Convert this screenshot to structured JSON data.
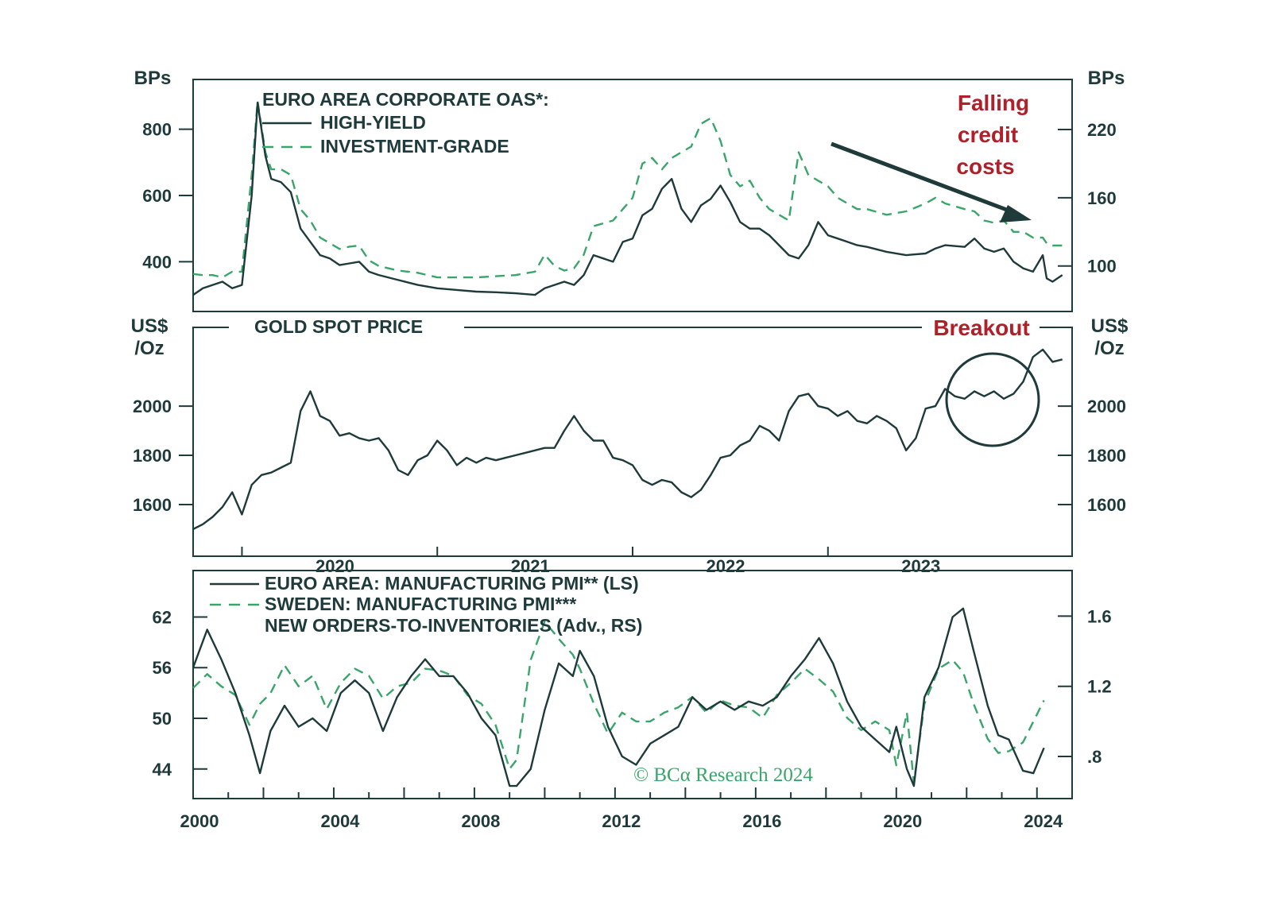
{
  "colors": {
    "dark": "#1f3a3a",
    "green": "#3aa56b",
    "red": "#b0202a"
  },
  "watermark": "© BCα Research 2024",
  "chart_data": [
    {
      "id": "oas",
      "type": "line",
      "title": "EURO AREA CORPORATE OAS*:",
      "left_unit": "BPs",
      "right_unit": "BPs",
      "x_range": [
        2019.75,
        2024.25
      ],
      "left_ylim": [
        250,
        950
      ],
      "right_ylim": [
        60,
        264
      ],
      "left_ticks": [
        {
          "value": 400,
          "label": "400"
        },
        {
          "value": 600,
          "label": "600"
        },
        {
          "value": 800,
          "label": "800"
        }
      ],
      "right_ticks": [
        {
          "value": 100,
          "label": "100"
        },
        {
          "value": 160,
          "label": "160"
        },
        {
          "value": 220,
          "label": "220"
        }
      ],
      "annotation": {
        "lines": [
          "Falling",
          "credit",
          "costs"
        ]
      },
      "series": [
        {
          "name": "HIGH-YIELD",
          "axis": "left",
          "style": "solid",
          "x": [
            2019.75,
            2019.8,
            2019.85,
            2019.9,
            2019.95,
            2020.0,
            2020.05,
            2020.08,
            2020.12,
            2020.15,
            2020.2,
            2020.25,
            2020.3,
            2020.35,
            2020.4,
            2020.45,
            2020.5,
            2020.55,
            2020.6,
            2020.65,
            2020.7,
            2020.8,
            2020.9,
            2021.0,
            2021.1,
            2021.2,
            2021.3,
            2021.4,
            2021.5,
            2021.55,
            2021.6,
            2021.65,
            2021.7,
            2021.75,
            2021.8,
            2021.9,
            2021.95,
            2022.0,
            2022.05,
            2022.1,
            2022.15,
            2022.2,
            2022.25,
            2022.3,
            2022.35,
            2022.4,
            2022.45,
            2022.5,
            2022.55,
            2022.6,
            2022.65,
            2022.7,
            2022.75,
            2022.8,
            2022.85,
            2022.9,
            2022.95,
            2023.0,
            2023.05,
            2023.1,
            2023.15,
            2023.2,
            2023.3,
            2023.4,
            2023.5,
            2023.55,
            2023.6,
            2023.7,
            2023.75,
            2023.8,
            2023.85,
            2023.9,
            2023.95,
            2024.0,
            2024.05,
            2024.1,
            2024.12,
            2024.15,
            2024.2
          ],
          "y": [
            300,
            320,
            330,
            340,
            320,
            330,
            600,
            880,
            720,
            650,
            640,
            610,
            500,
            460,
            420,
            410,
            390,
            395,
            400,
            370,
            360,
            345,
            330,
            320,
            315,
            310,
            308,
            305,
            300,
            320,
            330,
            340,
            330,
            360,
            420,
            400,
            460,
            470,
            540,
            560,
            620,
            650,
            560,
            520,
            570,
            590,
            630,
            580,
            520,
            500,
            500,
            480,
            450,
            420,
            410,
            450,
            520,
            480,
            470,
            460,
            450,
            445,
            430,
            420,
            425,
            440,
            450,
            445,
            470,
            440,
            430,
            440,
            400,
            380,
            370,
            420,
            350,
            340,
            360
          ]
        },
        {
          "name": "INVESTMENT-GRADE",
          "axis": "right",
          "style": "dashed",
          "x": [
            2019.75,
            2019.8,
            2019.85,
            2019.9,
            2019.95,
            2020.0,
            2020.05,
            2020.08,
            2020.12,
            2020.15,
            2020.2,
            2020.25,
            2020.3,
            2020.35,
            2020.4,
            2020.45,
            2020.5,
            2020.55,
            2020.6,
            2020.65,
            2020.7,
            2020.8,
            2020.9,
            2021.0,
            2021.1,
            2021.2,
            2021.3,
            2021.4,
            2021.5,
            2021.55,
            2021.6,
            2021.65,
            2021.7,
            2021.75,
            2021.8,
            2021.9,
            2021.95,
            2022.0,
            2022.05,
            2022.1,
            2022.15,
            2022.2,
            2022.25,
            2022.3,
            2022.35,
            2022.4,
            2022.45,
            2022.5,
            2022.55,
            2022.6,
            2022.65,
            2022.7,
            2022.75,
            2022.8,
            2022.85,
            2022.9,
            2022.95,
            2023.0,
            2023.05,
            2023.1,
            2023.15,
            2023.2,
            2023.3,
            2023.4,
            2023.5,
            2023.55,
            2023.6,
            2023.7,
            2023.75,
            2023.8,
            2023.85,
            2023.9,
            2023.95,
            2024.0,
            2024.05,
            2024.1,
            2024.12,
            2024.15,
            2024.2
          ],
          "y": [
            93,
            92,
            92,
            90,
            95,
            95,
            180,
            245,
            200,
            185,
            185,
            180,
            150,
            140,
            125,
            120,
            115,
            117,
            118,
            105,
            100,
            96,
            94,
            90,
            90,
            90,
            91,
            92,
            95,
            110,
            100,
            96,
            98,
            110,
            135,
            140,
            150,
            160,
            190,
            195,
            185,
            195,
            200,
            205,
            225,
            230,
            210,
            180,
            170,
            175,
            160,
            150,
            145,
            140,
            200,
            180,
            175,
            170,
            160,
            155,
            150,
            150,
            145,
            148,
            155,
            160,
            155,
            150,
            148,
            140,
            138,
            140,
            130,
            130,
            125,
            125,
            120,
            118,
            118
          ]
        }
      ]
    },
    {
      "id": "gold",
      "type": "line",
      "title": "GOLD SPOT PRICE",
      "left_unit": [
        "US$",
        "/Oz"
      ],
      "right_unit": [
        "US$",
        "/Oz"
      ],
      "x_range": [
        2019.75,
        2024.25
      ],
      "ylim": [
        1390,
        2320
      ],
      "ticks": [
        {
          "value": 1600,
          "label": "1600"
        },
        {
          "value": 1800,
          "label": "1800"
        },
        {
          "value": 2000,
          "label": "2000"
        }
      ],
      "x_ticks": [
        {
          "value": 2020,
          "label": "2020"
        },
        {
          "value": 2021,
          "label": "2021"
        },
        {
          "value": 2022,
          "label": "2022"
        },
        {
          "value": 2023,
          "label": "2023"
        }
      ],
      "annotation": {
        "text": "Breakout"
      },
      "series": [
        {
          "name": "GOLD SPOT PRICE",
          "style": "solid",
          "x": [
            2019.75,
            2019.8,
            2019.85,
            2019.9,
            2019.95,
            2020.0,
            2020.05,
            2020.1,
            2020.15,
            2020.2,
            2020.25,
            2020.3,
            2020.35,
            2020.4,
            2020.45,
            2020.5,
            2020.55,
            2020.6,
            2020.65,
            2020.7,
            2020.75,
            2020.8,
            2020.85,
            2020.9,
            2020.95,
            2021.0,
            2021.05,
            2021.1,
            2021.15,
            2021.2,
            2021.25,
            2021.3,
            2021.35,
            2021.4,
            2021.45,
            2021.5,
            2021.55,
            2021.6,
            2021.65,
            2021.7,
            2021.75,
            2021.8,
            2021.85,
            2021.9,
            2021.95,
            2022.0,
            2022.05,
            2022.1,
            2022.15,
            2022.2,
            2022.25,
            2022.3,
            2022.35,
            2022.4,
            2022.45,
            2022.5,
            2022.55,
            2022.6,
            2022.65,
            2022.7,
            2022.75,
            2022.8,
            2022.85,
            2022.9,
            2022.95,
            2023.0,
            2023.05,
            2023.1,
            2023.15,
            2023.2,
            2023.25,
            2023.3,
            2023.35,
            2023.4,
            2023.45,
            2023.5,
            2023.55,
            2023.6,
            2023.65,
            2023.7,
            2023.75,
            2023.8,
            2023.85,
            2023.9,
            2023.95,
            2024.0,
            2024.05,
            2024.1,
            2024.15,
            2024.2
          ],
          "y": [
            1500,
            1520,
            1550,
            1590,
            1650,
            1560,
            1680,
            1720,
            1730,
            1750,
            1770,
            1980,
            2060,
            1960,
            1940,
            1880,
            1890,
            1870,
            1860,
            1870,
            1820,
            1740,
            1720,
            1780,
            1800,
            1860,
            1820,
            1760,
            1790,
            1770,
            1790,
            1780,
            1790,
            1800,
            1810,
            1820,
            1830,
            1830,
            1900,
            1960,
            1900,
            1860,
            1860,
            1790,
            1780,
            1760,
            1700,
            1680,
            1700,
            1690,
            1650,
            1630,
            1660,
            1720,
            1790,
            1800,
            1840,
            1860,
            1920,
            1900,
            1860,
            1980,
            2040,
            2050,
            2000,
            1990,
            1960,
            1980,
            1940,
            1930,
            1960,
            1940,
            1910,
            1820,
            1870,
            1990,
            2000,
            2070,
            2040,
            2030,
            2060,
            2040,
            2060,
            2030,
            2050,
            2100,
            2200,
            2230,
            2180,
            2190
          ]
        }
      ]
    },
    {
      "id": "pmi",
      "type": "line",
      "title": "EURO AREA: MANUFACTURING PMI** (LS)",
      "x_range": [
        2000,
        2025
      ],
      "left_ylim": [
        40.5,
        67.5
      ],
      "right_ylim": [
        0.56,
        1.86
      ],
      "left_ticks": [
        {
          "value": 44,
          "label": "44"
        },
        {
          "value": 50,
          "label": "50"
        },
        {
          "value": 56,
          "label": "56"
        },
        {
          "value": 62,
          "label": "62"
        }
      ],
      "right_ticks": [
        {
          "value": 0.8,
          "label": ".8"
        },
        {
          "value": 1.2,
          "label": "1.2"
        },
        {
          "value": 1.6,
          "label": "1.6"
        }
      ],
      "x_ticks": [
        {
          "value": 2000,
          "label": "2000"
        },
        {
          "value": 2004,
          "label": "2004"
        },
        {
          "value": 2008,
          "label": "2008"
        },
        {
          "value": 2012,
          "label": "2012"
        },
        {
          "value": 2016,
          "label": "2016"
        },
        {
          "value": 2020,
          "label": "2020"
        },
        {
          "value": 2024,
          "label": "2024"
        }
      ],
      "legend": [
        "EURO AREA: MANUFACTURING PMI** (LS)",
        "SWEDEN: MANUFACTURING PMI***",
        "NEW ORDERS-TO-INVENTORIES (Adv., RS)"
      ],
      "series": [
        {
          "name": "EURO AREA: MANUFACTURING PMI** (LS)",
          "axis": "left",
          "style": "solid",
          "x": [
            2000,
            2000.4,
            2000.8,
            2001.2,
            2001.6,
            2001.9,
            2002.2,
            2002.6,
            2003.0,
            2003.4,
            2003.8,
            2004.2,
            2004.6,
            2005.0,
            2005.4,
            2005.8,
            2006.2,
            2006.6,
            2007.0,
            2007.4,
            2007.8,
            2008.2,
            2008.6,
            2009.0,
            2009.2,
            2009.6,
            2010.0,
            2010.4,
            2010.8,
            2011.0,
            2011.4,
            2011.8,
            2012.2,
            2012.6,
            2013.0,
            2013.4,
            2013.8,
            2014.2,
            2014.6,
            2015.0,
            2015.4,
            2015.8,
            2016.2,
            2016.6,
            2017.0,
            2017.4,
            2017.8,
            2018.2,
            2018.6,
            2019.0,
            2019.4,
            2019.8,
            2020.0,
            2020.3,
            2020.5,
            2020.8,
            2021.2,
            2021.6,
            2021.9,
            2022.2,
            2022.6,
            2022.9,
            2023.2,
            2023.6,
            2023.9,
            2024.2
          ],
          "y": [
            56,
            60.5,
            57,
            53,
            48,
            43.5,
            48.5,
            51.5,
            49,
            50,
            48.5,
            53,
            54.5,
            53,
            48.5,
            52.5,
            55,
            57,
            55,
            55,
            53,
            50,
            48,
            42,
            42,
            44,
            51,
            56.5,
            55,
            58,
            55,
            49,
            45.5,
            44.5,
            47,
            48,
            49,
            52.5,
            51,
            52,
            51,
            52,
            51.5,
            52.5,
            55,
            57,
            59.5,
            56.5,
            52,
            49,
            47.5,
            46,
            49,
            44,
            42,
            52.5,
            56,
            62,
            63,
            58,
            51.5,
            48,
            47.5,
            43.8,
            43.5,
            46.5
          ]
        },
        {
          "name": "SWEDEN: MANUFACTURING PMI***",
          "axis": "left",
          "style": "dashed",
          "x": [],
          "y": []
        },
        {
          "name": "NEW ORDERS-TO-INVENTORIES (Adv., RS)",
          "axis": "right",
          "style": "dashed",
          "x": [
            2000,
            2000.4,
            2000.8,
            2001.2,
            2001.6,
            2001.9,
            2002.2,
            2002.6,
            2003.0,
            2003.4,
            2003.8,
            2004.2,
            2004.6,
            2005.0,
            2005.4,
            2005.8,
            2006.2,
            2006.6,
            2007.0,
            2007.4,
            2007.8,
            2008.2,
            2008.6,
            2009.0,
            2009.2,
            2009.6,
            2010.0,
            2010.4,
            2010.8,
            2011.0,
            2011.4,
            2011.8,
            2012.2,
            2012.6,
            2013.0,
            2013.4,
            2013.8,
            2014.2,
            2014.6,
            2015.0,
            2015.4,
            2015.8,
            2016.2,
            2016.6,
            2017.0,
            2017.4,
            2017.8,
            2018.2,
            2018.6,
            2019.0,
            2019.4,
            2019.8,
            2020.0,
            2020.3,
            2020.5,
            2020.8,
            2021.2,
            2021.6,
            2021.9,
            2022.2,
            2022.6,
            2022.9,
            2023.2,
            2023.6,
            2023.9,
            2024.2
          ],
          "y": [
            1.19,
            1.27,
            1.2,
            1.15,
            0.98,
            1.1,
            1.16,
            1.32,
            1.2,
            1.26,
            1.07,
            1.22,
            1.3,
            1.26,
            1.13,
            1.2,
            1.22,
            1.3,
            1.29,
            1.26,
            1.15,
            1.1,
            0.98,
            0.73,
            0.78,
            1.35,
            1.57,
            1.47,
            1.38,
            1.3,
            1.1,
            0.93,
            1.05,
            1.0,
            1.0,
            1.05,
            1.08,
            1.14,
            1.05,
            1.12,
            1.09,
            1.08,
            1.02,
            1.15,
            1.22,
            1.3,
            1.24,
            1.17,
            1.02,
            0.95,
            1.0,
            0.95,
            0.75,
            1.05,
            0.65,
            1.1,
            1.3,
            1.35,
            1.28,
            1.1,
            0.9,
            0.82,
            0.83,
            0.88,
            1.0,
            1.12
          ]
        }
      ]
    }
  ]
}
